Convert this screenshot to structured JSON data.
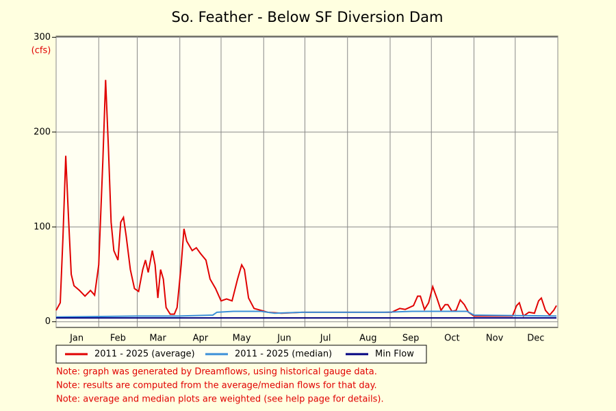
{
  "chart_data": {
    "type": "line",
    "title": "So. Feather - Below SF Diversion Dam",
    "y_unit": "(cfs)",
    "xlim": [
      1,
      366
    ],
    "xticks": [
      {
        "value": 16,
        "label": "Jan"
      },
      {
        "value": 46,
        "label": "Feb"
      },
      {
        "value": 75,
        "label": "Mar"
      },
      {
        "value": 106,
        "label": "Apr"
      },
      {
        "value": 136,
        "label": "May"
      },
      {
        "value": 167,
        "label": "Jun"
      },
      {
        "value": 197,
        "label": "Jul"
      },
      {
        "value": 228,
        "label": "Aug"
      },
      {
        "value": 259,
        "label": "Sep"
      },
      {
        "value": 289,
        "label": "Oct"
      },
      {
        "value": 320,
        "label": "Nov"
      },
      {
        "value": 350,
        "label": "Dec"
      }
    ],
    "xgrid": [
      1,
      32,
      60,
      91,
      121,
      152,
      182,
      213,
      244,
      274,
      305,
      335,
      366
    ],
    "ylim": [
      -6,
      301
    ],
    "yticks": [
      0,
      100,
      200,
      300
    ],
    "grid": true,
    "series": [
      {
        "name": "2011 - 2025 (average)",
        "color": "#e00000",
        "x": [
          1,
          4,
          6,
          8,
          10,
          12,
          14,
          18,
          22,
          26,
          29,
          32,
          35,
          37,
          39,
          41,
          43,
          46,
          48,
          50,
          52,
          55,
          58,
          61,
          64,
          66,
          68,
          71,
          73,
          75,
          77,
          79,
          81,
          84,
          87,
          89,
          92,
          94,
          96,
          100,
          103,
          106,
          110,
          113,
          117,
          121,
          125,
          129,
          133,
          136,
          138,
          141,
          145,
          150,
          155,
          165,
          180,
          200,
          230,
          245,
          251,
          255,
          261,
          264,
          266,
          269,
          272,
          275,
          278,
          281,
          284,
          286,
          289,
          292,
          295,
          298,
          301,
          305,
          320,
          333,
          336,
          338,
          341,
          345,
          349,
          352,
          354,
          357,
          360,
          363,
          365
        ],
        "values": [
          12,
          20,
          90,
          175,
          110,
          50,
          38,
          33,
          27,
          33,
          28,
          60,
          170,
          255,
          185,
          105,
          75,
          65,
          105,
          110,
          90,
          55,
          35,
          32,
          55,
          65,
          52,
          75,
          60,
          25,
          55,
          45,
          15,
          8,
          8,
          15,
          60,
          98,
          85,
          75,
          78,
          72,
          65,
          45,
          35,
          22,
          24,
          22,
          45,
          60,
          55,
          25,
          14,
          12,
          10,
          9,
          10,
          10,
          10,
          10,
          14,
          13,
          17,
          27,
          27,
          13,
          20,
          37,
          25,
          12,
          18,
          18,
          11,
          12,
          23,
          18,
          10,
          6,
          6,
          6,
          17,
          20,
          6,
          10,
          9,
          22,
          25,
          12,
          7,
          12,
          17
        ]
      },
      {
        "name": "2011 - 2025 (median)",
        "color": "#3a8fd8",
        "x": [
          1,
          60,
          90,
          115,
          118,
          130,
          150,
          160,
          180,
          210,
          240,
          260,
          300,
          305,
          365
        ],
        "values": [
          5,
          6,
          6,
          7,
          10,
          11,
          11,
          9,
          10,
          10,
          10,
          11,
          11,
          7,
          6
        ]
      },
      {
        "name": "Min Flow",
        "color": "#000080",
        "x": [
          1,
          365
        ],
        "values": [
          4,
          4
        ]
      }
    ],
    "notes": [
      "Note: graph was generated by Dreamflows, using historical gauge data.",
      "Note: results are computed from the average/median flows for that day.",
      "Note: average and median plots are weighted (see help page for details)."
    ]
  }
}
